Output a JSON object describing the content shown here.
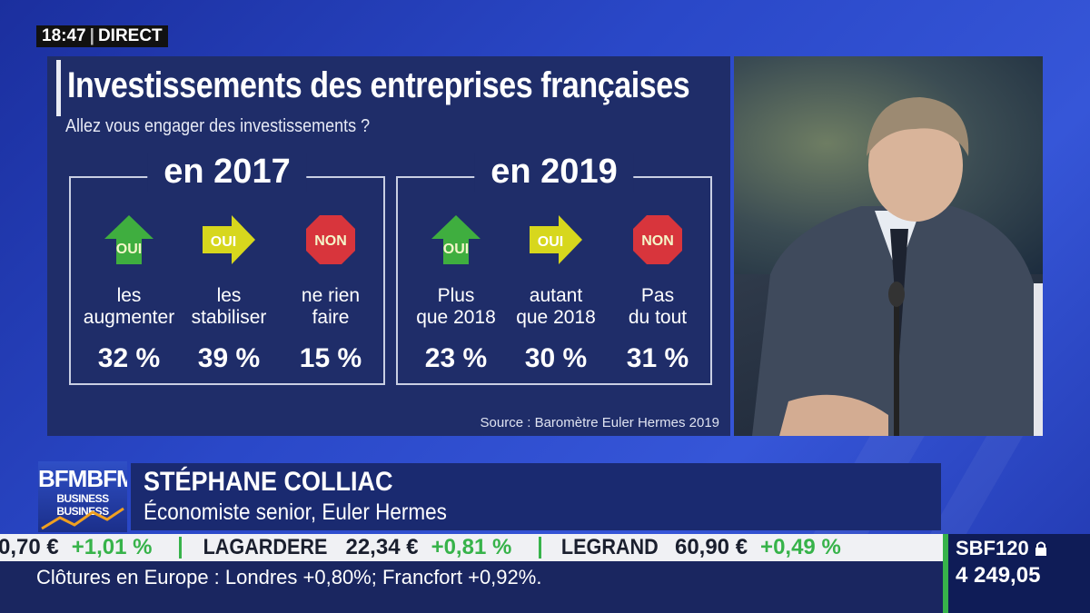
{
  "clock": {
    "time": "18:47",
    "live": "DIRECT"
  },
  "panel": {
    "title": "Investissements des entreprises françaises",
    "subtitle": "Allez vous engager des investissements ?",
    "source": "Source : Baromètre Euler Hermes 2019",
    "groups": [
      {
        "year": "en 2017",
        "options": [
          {
            "badge": "OUI",
            "icon": "green-up-arrow-icon",
            "color": "#3fae3f",
            "label1": "les",
            "label2": "augmenter",
            "value": "32 %"
          },
          {
            "badge": "OUI",
            "icon": "yellow-right-arrow-icon",
            "color": "#d7d71d",
            "label1": "les",
            "label2": "stabiliser",
            "value": "39 %"
          },
          {
            "badge": "NON",
            "icon": "red-stop-octagon-icon",
            "color": "#d8353c",
            "label1": "ne rien",
            "label2": "faire",
            "value": "15 %"
          }
        ]
      },
      {
        "year": "en 2019",
        "options": [
          {
            "badge": "OUI",
            "icon": "green-up-arrow-icon",
            "color": "#3fae3f",
            "label1": "Plus",
            "label2": "que 2018",
            "value": "23 %"
          },
          {
            "badge": "OUI",
            "icon": "yellow-right-arrow-icon",
            "color": "#d7d71d",
            "label1": "autant",
            "label2": "que 2018",
            "value": "30 %"
          },
          {
            "badge": "NON",
            "icon": "red-stop-octagon-icon",
            "color": "#d8353c",
            "label1": "Pas",
            "label2": "du tout",
            "value": "31 %"
          }
        ]
      }
    ]
  },
  "lower_third": {
    "logo_top": "BFMBFM",
    "logo_bottom": "BUSINESS BUSINESS",
    "name": "STÉPHANE COLLIAC",
    "role": "Économiste senior, Euler Hermes"
  },
  "ticker": {
    "items": [
      {
        "symbol": "",
        "price": "0,70 €",
        "change": "+1,01 %"
      },
      {
        "symbol": "LAGARDERE",
        "price": "22,34 €",
        "change": "+0,81 %"
      },
      {
        "symbol": "LEGRAND",
        "price": "60,90 €",
        "change": "+0,49 %"
      }
    ],
    "news": "Clôtures en Europe : Londres +0,80%; Francfort +0,92%.",
    "index_name": "SBF120",
    "index_value": "4 249,05",
    "up_color": "#37b34a"
  }
}
